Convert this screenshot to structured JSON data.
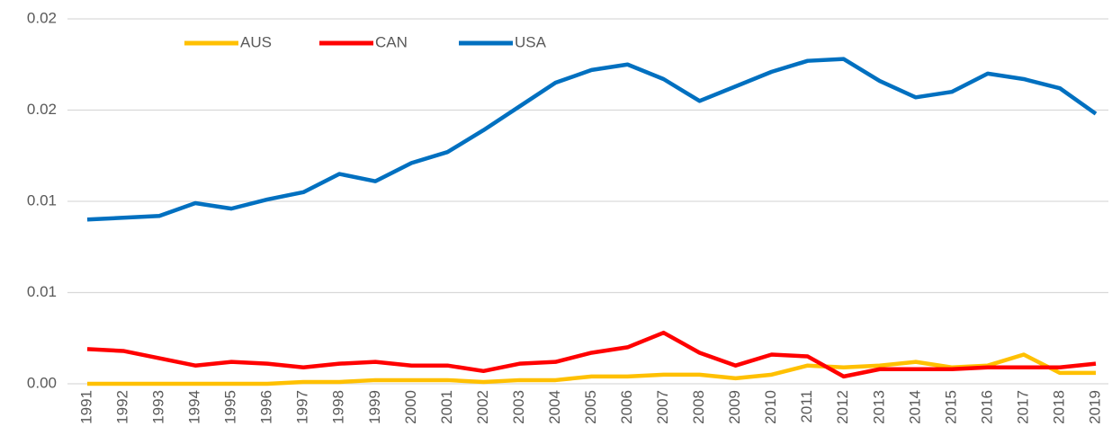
{
  "chart_data": {
    "type": "line",
    "categories": [
      "1991",
      "1992",
      "1993",
      "1994",
      "1995",
      "1996",
      "1997",
      "1998",
      "1999",
      "2000",
      "2001",
      "2002",
      "2003",
      "2004",
      "2005",
      "2006",
      "2007",
      "2008",
      "2009",
      "2010",
      "2011",
      "2012",
      "2013",
      "2014",
      "2015",
      "2016",
      "2017",
      "2018",
      "2019"
    ],
    "series": [
      {
        "name": "AUS",
        "color": "#FFC000",
        "values": [
          0,
          0,
          0,
          0,
          0,
          0,
          0.0001,
          0.0001,
          0.0002,
          0.0002,
          0.0002,
          0.0001,
          0.0002,
          0.0002,
          0.0004,
          0.0004,
          0.0005,
          0.0005,
          0.0003,
          0.0005,
          0.001,
          0.0009,
          0.001,
          0.0012,
          0.0009,
          0.001,
          0.0016,
          0.0006,
          0.0006
        ]
      },
      {
        "name": "CAN",
        "color": "#FF0000",
        "values": [
          0.0019,
          0.0018,
          0.0014,
          0.001,
          0.0012,
          0.0011,
          0.0009,
          0.0011,
          0.0012,
          0.001,
          0.001,
          0.0007,
          0.0011,
          0.0012,
          0.0017,
          0.002,
          0.0028,
          0.0017,
          0.001,
          0.0016,
          0.0015,
          0.0004,
          0.0008,
          0.0008,
          0.0008,
          0.0009,
          0.0009,
          0.0009,
          0.0011
        ]
      },
      {
        "name": "USA",
        "color": "#0070C0",
        "values": [
          0.009,
          0.0091,
          0.0092,
          0.0099,
          0.0096,
          0.0101,
          0.0105,
          0.0115,
          0.0111,
          0.0121,
          0.0127,
          0.0139,
          0.0152,
          0.0165,
          0.0172,
          0.0175,
          0.0167,
          0.0155,
          0.0163,
          0.0171,
          0.0177,
          0.0178,
          0.0166,
          0.0157,
          0.016,
          0.017,
          0.0167,
          0.0162,
          0.0148
        ]
      }
    ],
    "ylim": [
      0,
      0.02
    ],
    "yticks": [
      {
        "value": 0,
        "label": "0.00"
      },
      {
        "value": 0.005,
        "label": "0.01"
      },
      0.01,
      {
        "value": 0.015,
        "label": "0.02"
      },
      0.02
    ],
    "grid": true,
    "legend": "top"
  }
}
